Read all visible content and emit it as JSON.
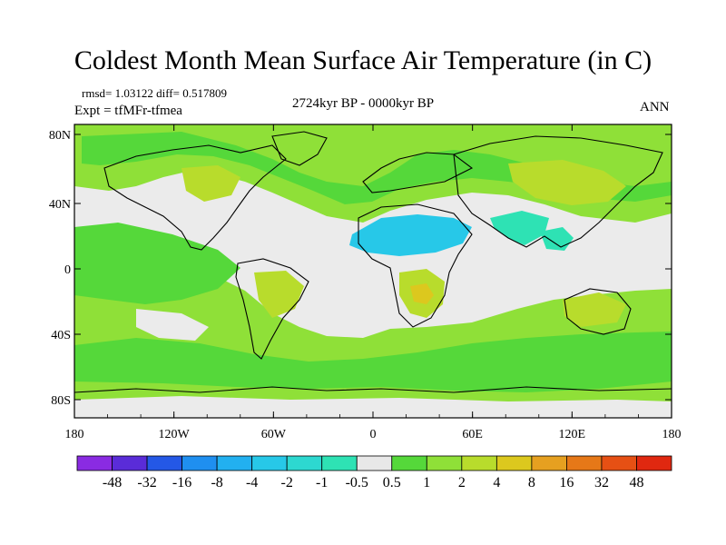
{
  "title": "Coldest Month Mean Surface Air Temperature (in C)",
  "stats": "rmsd= 1.03122  diff= 0.517809",
  "experiment": "Expt = tfMFr-tfmea",
  "period": "2724kyr BP - 0000kyr BP",
  "season": "ANN",
  "axes": {
    "lon_labels": [
      "180",
      "120W",
      "60W",
      "0",
      "60E",
      "120E",
      "180"
    ],
    "lat_labels": [
      "80N",
      "40N",
      "0",
      "40S",
      "80S"
    ]
  },
  "colorbar": {
    "labels": [
      "-48",
      "-32",
      "-16",
      "-8",
      "-4",
      "-2",
      "-1",
      "-0.5",
      "0.5",
      "1",
      "2",
      "4",
      "8",
      "16",
      "32",
      "48"
    ],
    "colors": [
      "#8a2be2",
      "#5a2cd8",
      "#2458e6",
      "#1f8ff0",
      "#22b0f0",
      "#27c8e8",
      "#2dd8d0",
      "#2ee2b4",
      "#e8e8e8",
      "#55d83a",
      "#8fe038",
      "#b8dc2c",
      "#dcc81e",
      "#e6a020",
      "#e67818",
      "#e65014",
      "#e02810"
    ]
  },
  "colors": {
    "ocean_bg": "#ebebeb",
    "light_green": "#8fe038",
    "green": "#55d83a",
    "yellow_green": "#b8dc2c",
    "cyan": "#27c8e8",
    "orange": "#dcc81e"
  }
}
